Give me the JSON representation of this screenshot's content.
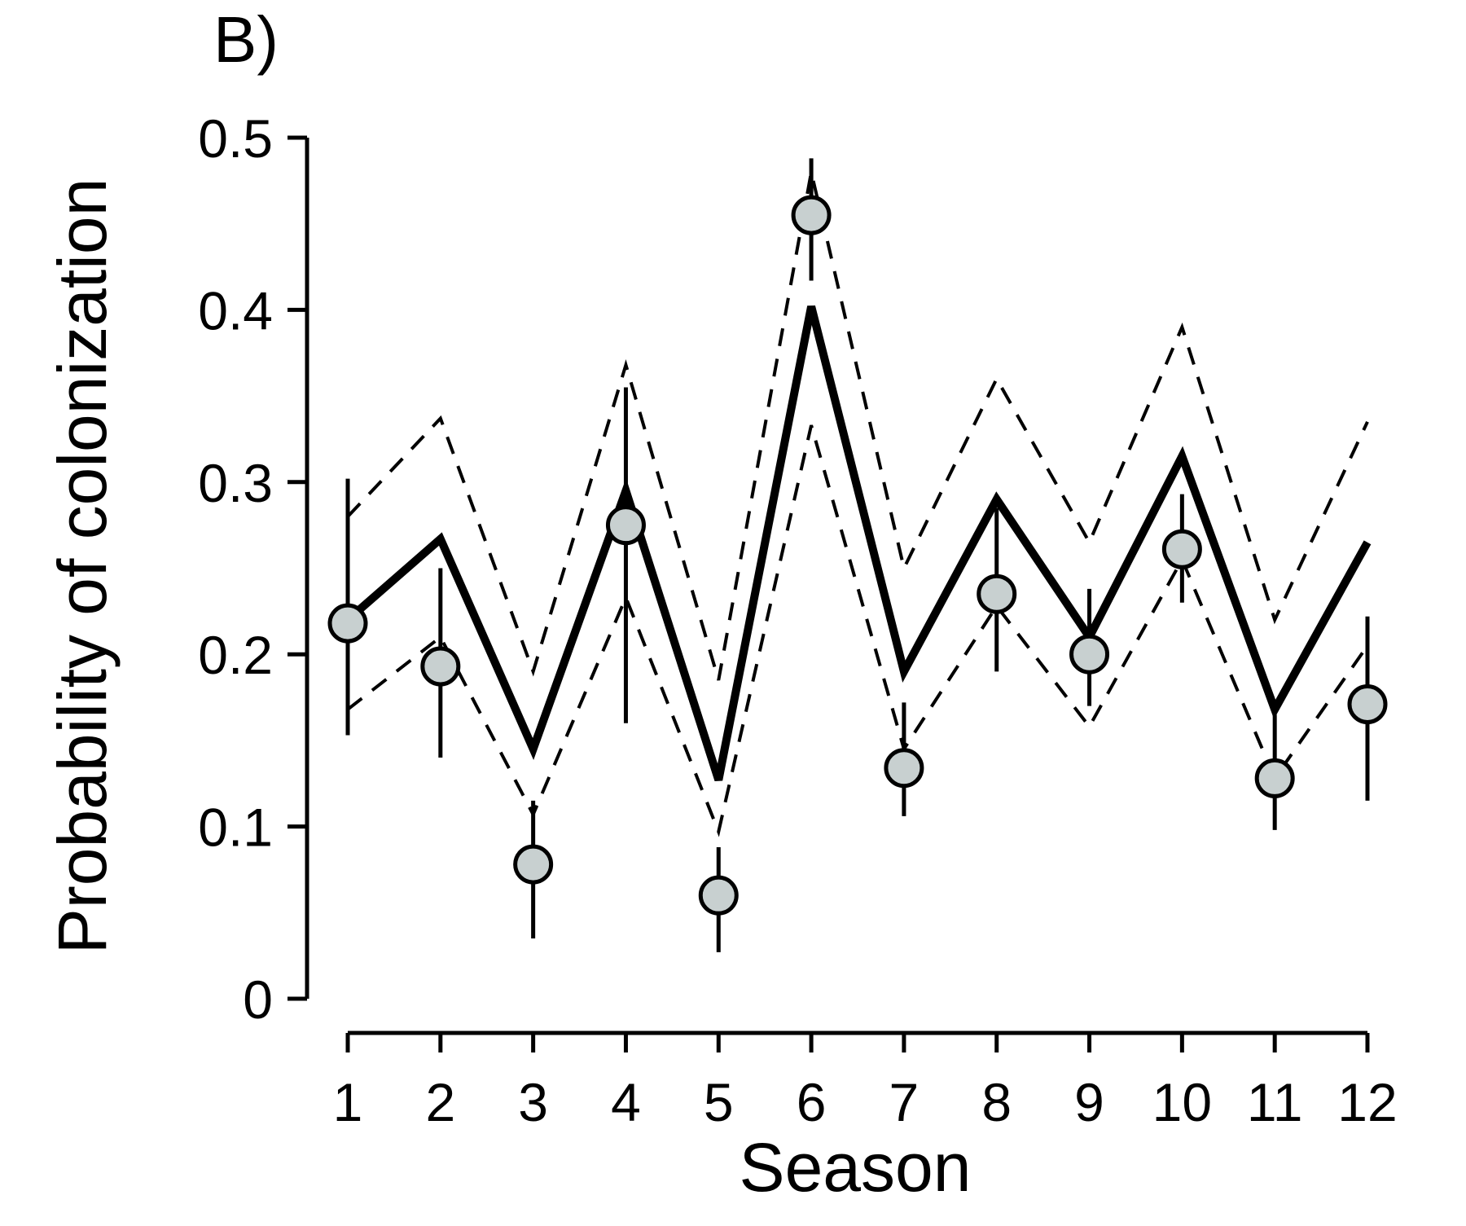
{
  "chart_data": {
    "type": "line",
    "panel_label": "B)",
    "title": "",
    "xlabel": "Season",
    "ylabel": "Probability of colonization",
    "x": [
      1,
      2,
      3,
      4,
      5,
      6,
      7,
      8,
      9,
      10,
      11,
      12
    ],
    "xticks": [
      "1",
      "2",
      "3",
      "4",
      "5",
      "6",
      "7",
      "8",
      "9",
      "10",
      "11",
      "12"
    ],
    "yticks": [
      "0",
      "0.1",
      "0.2",
      "0.3",
      "0.4",
      "0.5"
    ],
    "ylim": [
      0,
      0.5
    ],
    "xlim": [
      1,
      12
    ],
    "grid": false,
    "legend": "none",
    "series": [
      {
        "role": "model-mean",
        "style": "solid-thick",
        "values": [
          0.22,
          0.267,
          0.145,
          0.295,
          0.127,
          0.402,
          0.19,
          0.29,
          0.21,
          0.315,
          0.168,
          0.265
        ]
      },
      {
        "role": "model-upper-ci",
        "style": "dashed",
        "values": [
          0.28,
          0.337,
          0.19,
          0.368,
          0.185,
          0.48,
          0.25,
          0.36,
          0.265,
          0.39,
          0.22,
          0.335
        ]
      },
      {
        "role": "model-lower-ci",
        "style": "dashed",
        "values": [
          0.168,
          0.21,
          0.107,
          0.233,
          0.097,
          0.333,
          0.145,
          0.228,
          0.158,
          0.255,
          0.128,
          0.205
        ]
      },
      {
        "role": "observed-estimates",
        "style": "points-with-errorbars",
        "values": [
          0.218,
          0.193,
          0.078,
          0.275,
          0.06,
          0.455,
          0.134,
          0.235,
          0.2,
          0.261,
          0.128,
          0.171
        ],
        "lower": [
          0.153,
          0.14,
          0.035,
          0.16,
          0.027,
          0.417,
          0.106,
          0.19,
          0.17,
          0.23,
          0.098,
          0.115
        ],
        "upper": [
          0.302,
          0.25,
          0.115,
          0.355,
          0.088,
          0.488,
          0.172,
          0.285,
          0.238,
          0.293,
          0.165,
          0.222
        ]
      }
    ],
    "colors": {
      "line": "#000000",
      "point_fill": "#c8d0d0",
      "point_stroke": "#000000"
    }
  }
}
